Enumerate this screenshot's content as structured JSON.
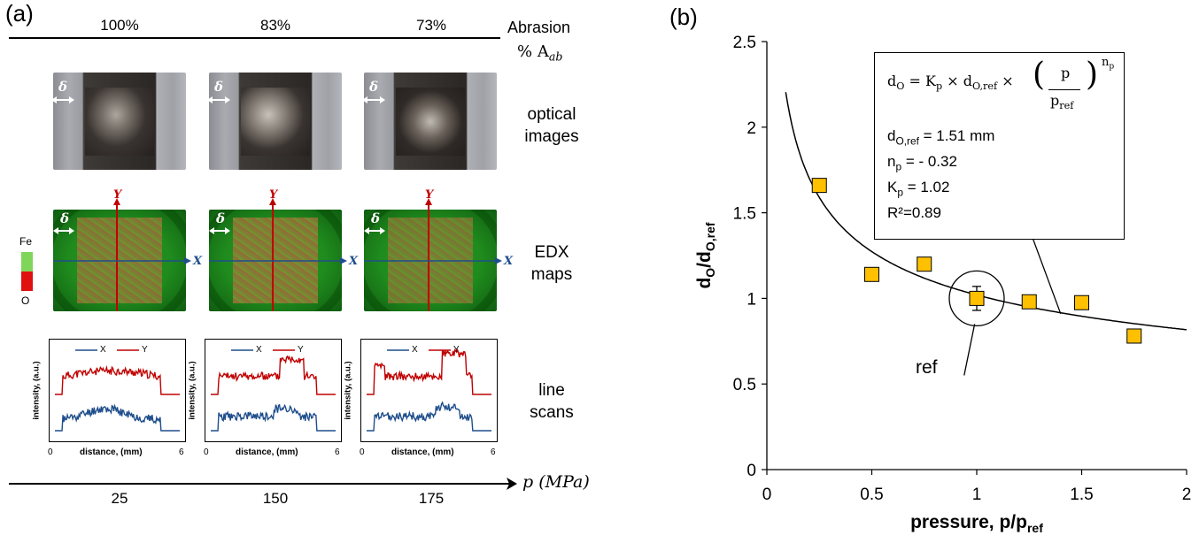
{
  "panel_a": {
    "label": "(a)",
    "abrasion_header": {
      "line1": "Abrasion",
      "line2": "% A",
      "sub": "ab"
    },
    "abrasion_values": [
      "100%",
      "83%",
      "73%"
    ],
    "row_labels": {
      "optical": [
        "optical",
        "images"
      ],
      "edx": [
        "EDX",
        "maps"
      ],
      "scans": [
        "line",
        "scans"
      ]
    },
    "delta_symbol": "δ",
    "edx_axis": {
      "x": "X",
      "y": "Y"
    },
    "colorbar": {
      "top": "Fe",
      "bottom": "O",
      "top_color": "#7fd65a",
      "bottom_color": "#e01010"
    },
    "scan_legend": {
      "x": "X",
      "y": "Y",
      "x_color": "#1f4e8c",
      "y_color": "#c00000"
    },
    "scan_ylabel": "intensity, (a.u.)",
    "scan_xlabel": "distance, (mm)",
    "scan_xticks": [
      "0",
      "6"
    ],
    "pressure_axis_label": "p (MPa)",
    "pressures": [
      "25",
      "150",
      "175"
    ]
  },
  "panel_b": {
    "label": "(b)",
    "fit_box": {
      "equation": {
        "lhs": "d",
        "lhs_sub": "O",
        "k": "K",
        "k_sub": "p",
        "dref": "d",
        "dref_sub": "O,ref",
        "p": "p",
        "pref": "p",
        "pref_sub": "ref",
        "exp": "n",
        "exp_sub": "p"
      },
      "lines": [
        {
          "key": "d",
          "sub": "O,ref",
          "value": " = 1.51 mm"
        },
        {
          "key": "n",
          "sub": "p",
          "value": " = - 0.32"
        },
        {
          "key": "K",
          "sub": "p",
          "value": " = 1.02"
        },
        {
          "key": "R²",
          "sub": "",
          "value": "=0.89"
        }
      ]
    },
    "ref_label": "ref"
  },
  "chart_data": [
    {
      "type": "scatter",
      "title": "",
      "xlabel": "pressure, p/p_ref",
      "ylabel": "d_O/d_O,ref",
      "xlim": [
        0,
        2
      ],
      "ylim": [
        0,
        2.5
      ],
      "xticks": [
        "0",
        "0.5",
        "1",
        "1.5",
        "2"
      ],
      "yticks": [
        "0",
        "0.5",
        "1",
        "1.5",
        "2",
        "2.5"
      ],
      "marker_color": "#ffc000",
      "series": [
        {
          "values": [
            {
              "x": 0.25,
              "y": 1.66
            },
            {
              "x": 0.5,
              "y": 1.14
            },
            {
              "x": 0.75,
              "y": 1.2
            },
            {
              "x": 1.0,
              "y": 1.0,
              "err": 0.07
            },
            {
              "x": 1.25,
              "y": 0.98
            },
            {
              "x": 1.5,
              "y": 0.975
            },
            {
              "x": 1.75,
              "y": 0.78
            }
          ]
        }
      ],
      "fit": {
        "K": 1.02,
        "n": -0.32
      }
    }
  ]
}
